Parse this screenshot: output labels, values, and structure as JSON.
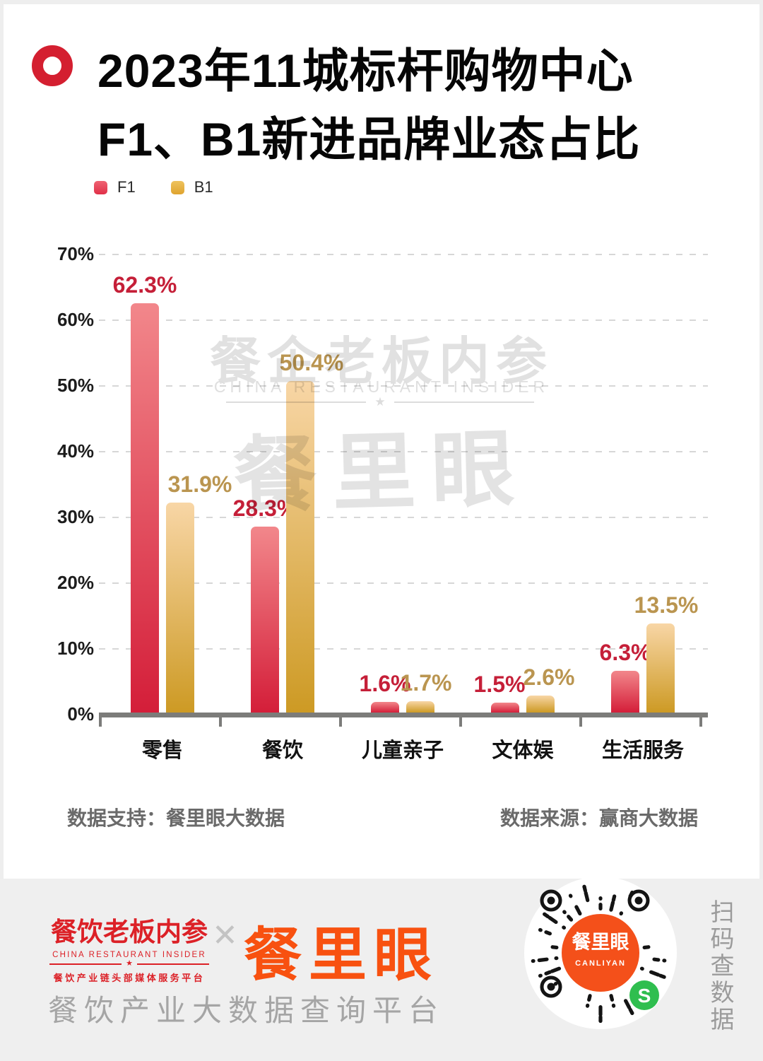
{
  "header": {
    "title_line1": "2023年11城标杆购物中心",
    "title_line2": "F1、B1新进品牌业态占比"
  },
  "legend": {
    "items": [
      {
        "label": "F1",
        "color": "#d41e39"
      },
      {
        "label": "B1",
        "color": "#cd9a24"
      }
    ]
  },
  "chart_data": {
    "type": "bar",
    "title": "2023年11城标杆购物中心F1、B1新进品牌业态占比",
    "categories": [
      "零售",
      "餐饮",
      "儿童亲子",
      "文体娱",
      "生活服务"
    ],
    "series": [
      {
        "name": "F1",
        "values": [
          62.3,
          28.3,
          1.6,
          1.5,
          6.3
        ],
        "color": "#d41e39",
        "label_color": "#c51f38"
      },
      {
        "name": "B1",
        "values": [
          31.9,
          50.4,
          1.7,
          2.6,
          13.5
        ],
        "color": "#cd9a24",
        "label_color": "#ba9550"
      }
    ],
    "value_suffix": "%",
    "xlabel": "",
    "ylabel": "",
    "ylim": [
      0,
      70
    ],
    "yticks": [
      "70%",
      "60%",
      "50%",
      "40%",
      "30%",
      "20%",
      "10%",
      "0%"
    ],
    "grid": "horizontal-dashed",
    "legend_position": "top-left"
  },
  "watermark": {
    "cjk": "餐企老板内参",
    "en": "CHINA RESTAURANT INSIDER",
    "star": "★",
    "big": "餐里眼"
  },
  "sources": {
    "support": "数据支持：餐里眼大数据",
    "origin": "数据来源：赢商大数据"
  },
  "footer": {
    "logo1": {
      "line1": "餐饮老板内参",
      "line2": "CHINA RESTAURANT INSIDER",
      "star": "★",
      "line3": "餐饮产业链头部媒体服务平台"
    },
    "separator": "✕",
    "logo2": "餐里眼",
    "tagline": "餐饮产业大数据查询平台",
    "qr": {
      "center_text": "餐里眼",
      "center_sub": "CANLIYAN"
    },
    "scan_hint": "扫码查数据"
  }
}
